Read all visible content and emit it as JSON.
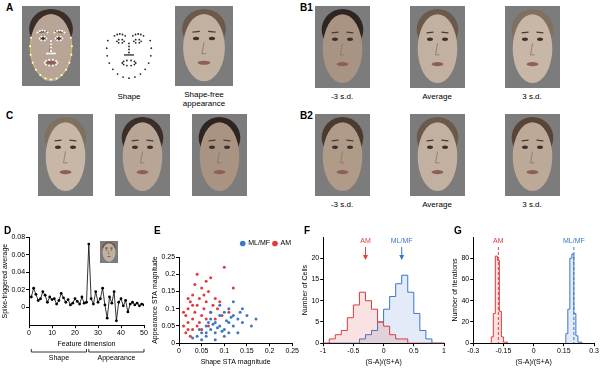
{
  "image_panels": [
    {
      "label": "A",
      "captions": [
        "Shape",
        "Shape-free appearance"
      ]
    },
    {
      "label": "B1",
      "captions": [
        "-3 s.d.",
        "Average",
        "3 s.d."
      ]
    },
    {
      "label": "B2",
      "captions": [
        "-3 s.d.",
        "Average",
        "3 s.d."
      ]
    },
    {
      "label": "C"
    }
  ],
  "chart_data": [
    {
      "type": "line",
      "title": "D",
      "x_label": "Feature dimension",
      "y_label": "Spike-triggered average",
      "x": [
        1,
        2,
        3,
        4,
        5,
        6,
        7,
        8,
        9,
        10,
        11,
        12,
        13,
        14,
        15,
        16,
        17,
        18,
        19,
        20,
        21,
        22,
        23,
        24,
        25,
        26,
        27,
        28,
        29,
        30,
        31,
        32,
        33,
        34,
        35,
        36,
        37,
        38,
        39,
        40,
        41,
        42,
        43,
        44,
        45,
        46,
        47,
        48,
        49,
        50
      ],
      "values": [
        0.012,
        0.022,
        0.015,
        0.008,
        0.01,
        0.018,
        0.014,
        0.006,
        0.012,
        0.009,
        0.01,
        0.004,
        0.008,
        0.016,
        0.011,
        0.006,
        0.009,
        0.003,
        0.005,
        0.01,
        0.007,
        0.004,
        0.012,
        0.005,
        0.006,
        0.072,
        0.01,
        0.004,
        0.018,
        0.006,
        0.01,
        0.022,
        0.003,
        -0.012,
        0.012,
        0.005,
        0.018,
        -0.015,
        0.006,
        0.01,
        0.002,
        0.008,
        -0.005,
        0.004,
        0.006,
        0.003,
        0.005,
        0.002,
        0.004,
        0.003
      ],
      "color": "#000000",
      "marker": "circle",
      "xlim": [
        0,
        50
      ],
      "xticks": [
        0,
        10,
        20,
        30,
        40,
        50
      ],
      "ylim": [
        -0.02,
        0.08
      ],
      "yticks": [
        0,
        0.02,
        0.04,
        0.06,
        0.08
      ],
      "grid": false,
      "annotations": [
        {
          "text": "Shape",
          "x_range": [
            1,
            25
          ]
        },
        {
          "text": "Appearance",
          "x_range": [
            26,
            50
          ]
        }
      ]
    },
    {
      "type": "scatter",
      "title": "E",
      "x_label": "Shape STA magnitude",
      "y_label": "Appearance STA magnitude",
      "series": [
        {
          "name": "ML/MF",
          "color": "#3c78c8",
          "x": [
            0.04,
            0.05,
            0.06,
            0.07,
            0.08,
            0.09,
            0.1,
            0.11,
            0.12,
            0.13,
            0.14,
            0.15,
            0.16,
            0.06,
            0.07,
            0.08,
            0.09,
            0.1,
            0.11,
            0.12,
            0.05,
            0.03,
            0.08,
            0.1,
            0.13,
            0.09,
            0.12,
            0.14,
            0.07,
            0.06,
            0.11,
            0.085,
            0.095,
            0.105,
            0.075,
            0.065,
            0.115,
            0.135,
            0.045,
            0.17
          ],
          "values": [
            0.02,
            0.03,
            0.02,
            0.04,
            0.03,
            0.05,
            0.04,
            0.06,
            0.05,
            0.07,
            0.06,
            0.08,
            0.05,
            0.05,
            0.07,
            0.06,
            0.08,
            0.09,
            0.03,
            0.08,
            0.01,
            0.015,
            0.01,
            0.02,
            0.03,
            0.11,
            0.12,
            0.1,
            0.09,
            0.03,
            0.1,
            0.045,
            0.035,
            0.065,
            0.055,
            0.06,
            0.075,
            0.09,
            0.04,
            0.07
          ]
        },
        {
          "name": "AM",
          "color": "#e03c3c",
          "x": [
            0.01,
            0.015,
            0.02,
            0.02,
            0.025,
            0.03,
            0.03,
            0.035,
            0.04,
            0.04,
            0.045,
            0.05,
            0.05,
            0.055,
            0.06,
            0.06,
            0.065,
            0.07,
            0.075,
            0.08,
            0.02,
            0.03,
            0.015,
            0.035,
            0.045,
            0.055,
            0.065,
            0.07,
            0.08,
            0.09,
            0.1,
            0.12,
            0.025,
            0.04,
            0.05,
            0.085,
            0.095,
            0.11,
            0.06,
            0.03,
            0.02,
            0.01
          ],
          "values": [
            0.05,
            0.08,
            0.1,
            0.06,
            0.12,
            0.07,
            0.14,
            0.09,
            0.11,
            0.05,
            0.13,
            0.08,
            0.16,
            0.1,
            0.12,
            0.07,
            0.15,
            0.09,
            0.11,
            0.13,
            0.04,
            0.04,
            0.03,
            0.17,
            0.06,
            0.14,
            0.05,
            0.19,
            0.07,
            0.12,
            0.22,
            0.16,
            0.02,
            0.2,
            0.04,
            0.1,
            0.08,
            0.09,
            0.18,
            0.11,
            0.13,
            0.09
          ]
        }
      ],
      "xlim": [
        0,
        0.25
      ],
      "xticks": [
        0,
        0.05,
        0.1,
        0.15,
        0.2,
        0.25
      ],
      "ylim": [
        0,
        0.25
      ],
      "yticks": [
        0,
        0.05,
        0.1,
        0.15,
        0.2,
        0.25
      ],
      "grid": false,
      "legend": "top-right"
    },
    {
      "type": "histogram",
      "title": "F",
      "x_label": "(S-A)/(S+A)",
      "y_label": "Number of Cells",
      "bins": [
        -1,
        -0.9,
        -0.8,
        -0.7,
        -0.6,
        -0.5,
        -0.4,
        -0.3,
        -0.2,
        -0.1,
        0,
        0.1,
        0.2,
        0.3,
        0.4,
        0.5,
        0.6,
        0.7,
        0.8,
        0.9,
        1
      ],
      "series": [
        {
          "name": "AM",
          "color": "#e03c3c",
          "mean": -0.3,
          "values": [
            0,
            0,
            1,
            2,
            3,
            6,
            9,
            12,
            10,
            8,
            5,
            4,
            2,
            1,
            1,
            0,
            0,
            0,
            0,
            0
          ]
        },
        {
          "name": "ML/MF",
          "color": "#3c78c8",
          "mean": 0.3,
          "values": [
            0,
            0,
            0,
            0,
            0,
            0,
            0,
            1,
            2,
            3,
            5,
            8,
            11,
            14,
            16,
            12,
            7,
            3,
            1,
            0
          ]
        }
      ],
      "marker": "arrow",
      "xlim": [
        -1,
        1
      ],
      "xticks": [
        -1,
        -0.5,
        0,
        0.5,
        1
      ],
      "ylim": [
        0,
        25
      ],
      "yticks": [
        0,
        5,
        10,
        15,
        20
      ],
      "grid": false
    },
    {
      "type": "histogram",
      "title": "G",
      "x_label": "(S-A)/(S+A)",
      "y_label": "Number of iterations",
      "series": [
        {
          "name": "AM",
          "color": "#e03c3c",
          "mean": -0.175,
          "bins": [
            -0.21,
            -0.2,
            -0.19,
            -0.18,
            -0.17,
            -0.16,
            -0.15,
            -0.14,
            -0.13
          ],
          "values": [
            1,
            6,
            28,
            82,
            78,
            30,
            6,
            1
          ]
        },
        {
          "name": "ML/MF",
          "color": "#3c78c8",
          "mean": 0.2,
          "bins": [
            0.16,
            0.17,
            0.18,
            0.19,
            0.2,
            0.21,
            0.22,
            0.23,
            0.24
          ],
          "values": [
            2,
            9,
            32,
            80,
            84,
            28,
            7,
            1
          ]
        }
      ],
      "marker": "line",
      "line_style": "dashed",
      "xlim": [
        -0.3,
        0.3
      ],
      "xticks": [
        -0.3,
        -0.15,
        0,
        0.15,
        0.3
      ],
      "ylim": [
        0,
        100
      ],
      "yticks": [
        0,
        20,
        40,
        60,
        80
      ],
      "grid": false
    }
  ]
}
